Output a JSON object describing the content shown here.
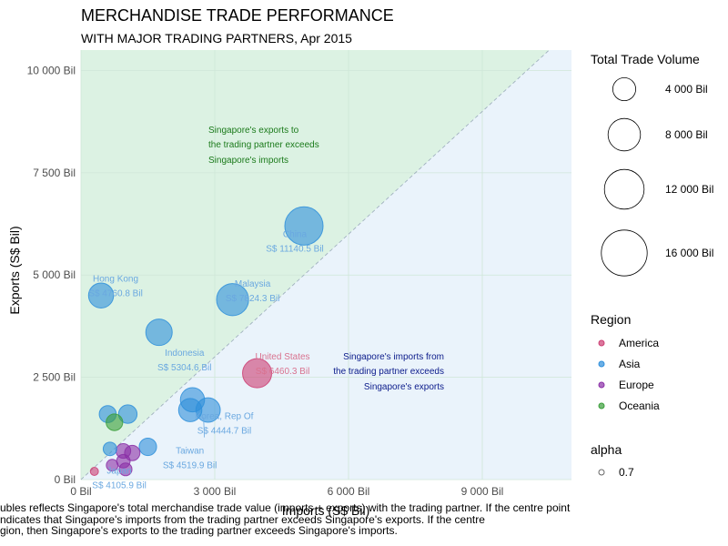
{
  "chart_data": {
    "type": "scatter",
    "title": "MERCHANDISE TRADE PERFORMANCE",
    "subtitle": "WITH MAJOR TRADING PARTNERS, Apr 2015",
    "xlabel": "Imports (S$ Bil)",
    "ylabel": "Exports (S$ Bil)",
    "xlim": [
      0,
      11000
    ],
    "ylim": [
      0,
      10500
    ],
    "x_ticks": [
      {
        "value": 0,
        "label": "0 Bil"
      },
      {
        "value": 3000,
        "label": "3 000 Bil"
      },
      {
        "value": 6000,
        "label": "6 000 Bil"
      },
      {
        "value": 9000,
        "label": "9 000 Bil"
      }
    ],
    "y_ticks": [
      {
        "value": 0,
        "label": "0 Bil"
      },
      {
        "value": 2500,
        "label": "2 500 Bil"
      },
      {
        "value": 5000,
        "label": "5 000 Bil"
      },
      {
        "value": 7500,
        "label": "7 500 Bil"
      },
      {
        "value": 10000,
        "label": "10 000 Bil"
      }
    ],
    "grid": true,
    "reference_line": "y = x",
    "colors": {
      "America": "#cc3e73",
      "Asia": "#2e8fdb",
      "Europe": "#8a2fa6",
      "Oceania": "#3a9e3a",
      "above_fill": "#dcf2e3",
      "below_fill": "#eaf3fb",
      "annot_above": "#1a7a1a",
      "annot_below": "#0a1a8a"
    },
    "points": [
      {
        "name": "China",
        "region": "Asia",
        "imports": 5000,
        "exports": 6200,
        "total": 11140.5,
        "label": "China",
        "value_label": "S$ 11140.5 Bil"
      },
      {
        "name": "Malaysia",
        "region": "Asia",
        "imports": 3400,
        "exports": 4400,
        "total": 7824.3,
        "label": "Malaysia",
        "value_label": "S$ 7824.3 Bil"
      },
      {
        "name": "Hong Kong",
        "region": "Asia",
        "imports": 450,
        "exports": 4500,
        "total": 4760.8,
        "label": "Hong Kong",
        "value_label": "S$ 4760.8 Bil"
      },
      {
        "name": "Indonesia",
        "region": "Asia",
        "imports": 1750,
        "exports": 3600,
        "total": 5304.6,
        "label": "Indonesia",
        "value_label": "S$ 5304.6 Bil"
      },
      {
        "name": "United States",
        "region": "America",
        "imports": 3950,
        "exports": 2600,
        "total": 6460.3,
        "label": "United States",
        "value_label": "S$ 6460.3 Bil"
      },
      {
        "name": "Korea, Rep Of",
        "region": "Asia",
        "imports": 2500,
        "exports": 1950,
        "total": 4444.7,
        "label": "Korea, Rep Of",
        "value_label": "S$ 4444.7 Bil"
      },
      {
        "name": "Taiwan",
        "region": "Asia",
        "imports": 2850,
        "exports": 1700,
        "total": 4519.9,
        "label": "Taiwan",
        "value_label": "S$ 4519.9 Bil"
      },
      {
        "name": "Japan",
        "region": "Asia",
        "imports": 2450,
        "exports": 1700,
        "total": 4105.9,
        "label": "Japan",
        "value_label": "S$ 4105.9 Bil"
      },
      {
        "name": "Asia_a",
        "region": "Asia",
        "imports": 600,
        "exports": 1600,
        "total": 2200,
        "label": "",
        "value_label": ""
      },
      {
        "name": "Asia_b",
        "region": "Asia",
        "imports": 1050,
        "exports": 1600,
        "total": 2600,
        "label": "",
        "value_label": ""
      },
      {
        "name": "Asia_c",
        "region": "Asia",
        "imports": 1500,
        "exports": 800,
        "total": 2300,
        "label": "",
        "value_label": ""
      },
      {
        "name": "Asia_d",
        "region": "Asia",
        "imports": 650,
        "exports": 750,
        "total": 1400,
        "label": "",
        "value_label": ""
      },
      {
        "name": "Oceania_a",
        "region": "Oceania",
        "imports": 750,
        "exports": 1400,
        "total": 2100,
        "label": "",
        "value_label": ""
      },
      {
        "name": "Europe_a",
        "region": "Europe",
        "imports": 950,
        "exports": 700,
        "total": 1650,
        "label": "",
        "value_label": ""
      },
      {
        "name": "Europe_b",
        "region": "Europe",
        "imports": 1150,
        "exports": 650,
        "total": 1800,
        "label": "",
        "value_label": ""
      },
      {
        "name": "Europe_c",
        "region": "Europe",
        "imports": 950,
        "exports": 450,
        "total": 1400,
        "label": "",
        "value_label": ""
      },
      {
        "name": "Europe_d",
        "region": "Europe",
        "imports": 700,
        "exports": 350,
        "total": 1050,
        "label": "",
        "value_label": ""
      },
      {
        "name": "Europe_e",
        "region": "Europe",
        "imports": 1000,
        "exports": 250,
        "total": 1250,
        "label": "",
        "value_label": ""
      },
      {
        "name": "America_b",
        "region": "America",
        "imports": 300,
        "exports": 200,
        "total": 500,
        "label": "",
        "value_label": ""
      }
    ],
    "annotations": {
      "above": [
        "Singapore's exports to",
        "the trading partner exceeds",
        "Singapore's imports"
      ],
      "below": [
        "Singapore's imports from",
        "the trading partner exceeds",
        "Singapore's exports"
      ]
    },
    "legend": {
      "size_title": "Total Trade Volume",
      "size_entries": [
        {
          "value": 4000,
          "label": "4 000 Bil"
        },
        {
          "value": 8000,
          "label": "8 000 Bil"
        },
        {
          "value": 12000,
          "label": "12 000 Bil"
        },
        {
          "value": 16000,
          "label": "16 000 Bil"
        }
      ],
      "color_title": "Region",
      "color_entries": [
        "America",
        "Asia",
        "Europe",
        "Oceania"
      ],
      "alpha_title": "alpha",
      "alpha_entry": "0.7"
    },
    "caption": [
      "ubles reflects Singapore's total merchandise trade value (imports + exports) with the trading partner. If the centre point",
      "ndicates that Singapore's imports from the trading partner exceeds Singapore's exports. If the centre",
      "gion, then Singapore's exports to the trading partner exceeds Singapore's imports."
    ]
  }
}
